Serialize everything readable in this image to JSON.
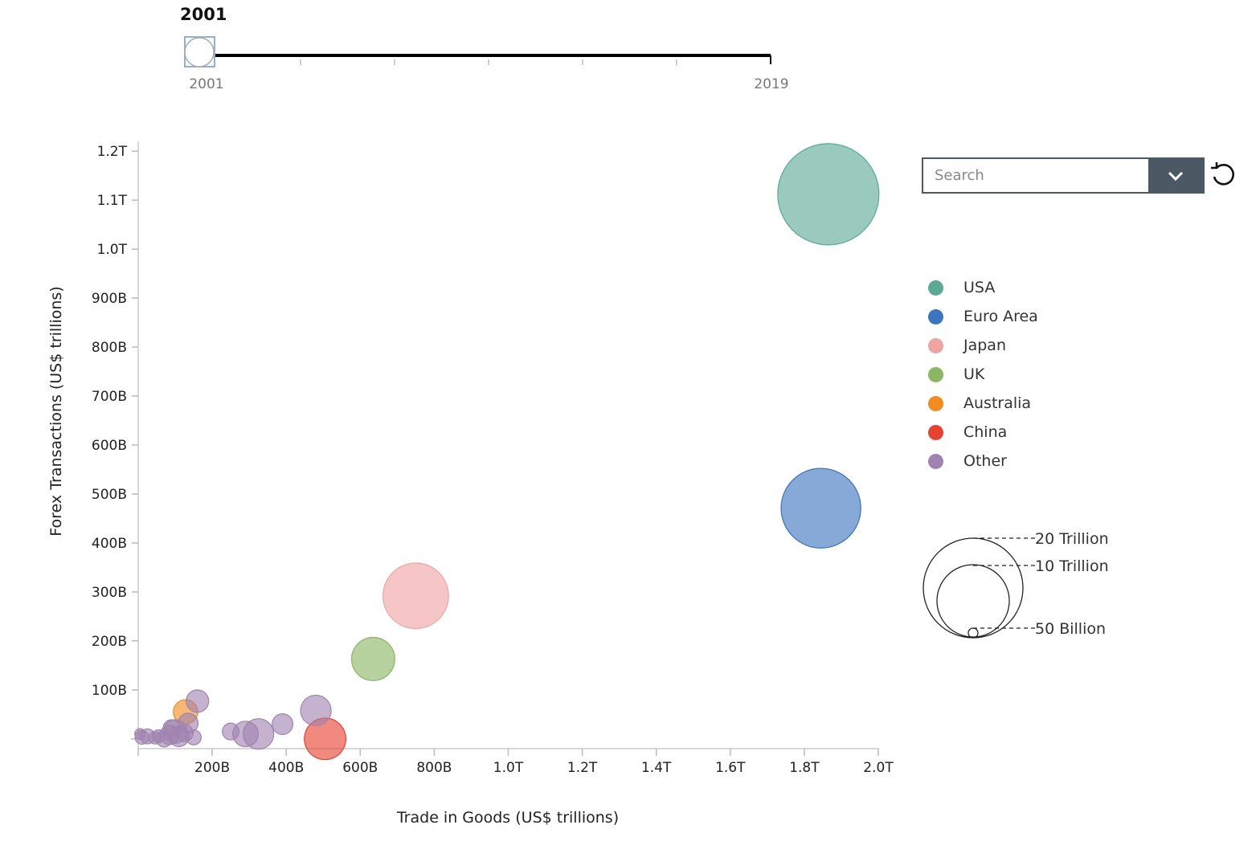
{
  "slider": {
    "current_year": "2001",
    "min_label": "2001",
    "max_label": "2019",
    "value": 2001,
    "min": 2001,
    "max": 2019
  },
  "search": {
    "placeholder": "Search"
  },
  "legend": {
    "items": [
      {
        "label": "USA",
        "color": "#5aaa95"
      },
      {
        "label": "Euro Area",
        "color": "#3b74bf"
      },
      {
        "label": "Japan",
        "color": "#f0a3a3"
      },
      {
        "label": "UK",
        "color": "#8bb662"
      },
      {
        "label": "Australia",
        "color": "#f28c1e"
      },
      {
        "label": "China",
        "color": "#e8412f"
      },
      {
        "label": "Other",
        "color": "#9f83b0"
      }
    ]
  },
  "size_legend": {
    "items": [
      {
        "label": "20 Trillion"
      },
      {
        "label": "10 Trillion"
      },
      {
        "label": "50 Billion"
      }
    ]
  },
  "chart_data": {
    "type": "scatter",
    "xlabel": "Trade in Goods (US$ trillions)",
    "ylabel": "Forex Transactions (US$ trillions)",
    "xlim": [
      0,
      2000
    ],
    "ylim": [
      -20,
      1220
    ],
    "x_ticks": [
      {
        "v": 200,
        "label": "200B"
      },
      {
        "v": 400,
        "label": "400B"
      },
      {
        "v": 600,
        "label": "600B"
      },
      {
        "v": 800,
        "label": "800B"
      },
      {
        "v": 1000,
        "label": "1.0T"
      },
      {
        "v": 1200,
        "label": "1.2T"
      },
      {
        "v": 1400,
        "label": "1.4T"
      },
      {
        "v": 1600,
        "label": "1.6T"
      },
      {
        "v": 1800,
        "label": "1.8T"
      },
      {
        "v": 2000,
        "label": "2.0T"
      }
    ],
    "y_ticks": [
      {
        "v": 100,
        "label": "100B"
      },
      {
        "v": 200,
        "label": "200B"
      },
      {
        "v": 300,
        "label": "300B"
      },
      {
        "v": 400,
        "label": "400B"
      },
      {
        "v": 500,
        "label": "500B"
      },
      {
        "v": 600,
        "label": "600B"
      },
      {
        "v": 700,
        "label": "700B"
      },
      {
        "v": 800,
        "label": "800B"
      },
      {
        "v": 900,
        "label": "900B"
      },
      {
        "v": 1000,
        "label": "1.0T"
      },
      {
        "v": 1100,
        "label": "1.1T"
      },
      {
        "v": 1200,
        "label": "1.2T"
      }
    ],
    "points": [
      {
        "group": "Other",
        "x": 5,
        "y": 10,
        "size": 0.6
      },
      {
        "group": "Other",
        "x": 10,
        "y": 3,
        "size": 1
      },
      {
        "group": "Other",
        "x": 25,
        "y": 5,
        "size": 1.2
      },
      {
        "group": "Other",
        "x": 45,
        "y": 2,
        "size": 0.8
      },
      {
        "group": "Other",
        "x": 55,
        "y": 5,
        "size": 0.9
      },
      {
        "group": "Other",
        "x": 70,
        "y": 0,
        "size": 1.4
      },
      {
        "group": "Other",
        "x": 85,
        "y": 8,
        "size": 2
      },
      {
        "group": "Other",
        "x": 90,
        "y": 22,
        "size": 1.5
      },
      {
        "group": "Other",
        "x": 100,
        "y": 15,
        "size": 3
      },
      {
        "group": "Other",
        "x": 110,
        "y": 5,
        "size": 2.2
      },
      {
        "group": "Other",
        "x": 125,
        "y": 12,
        "size": 1.6
      },
      {
        "group": "Other",
        "x": 135,
        "y": 32,
        "size": 2.1
      },
      {
        "group": "Other",
        "x": 150,
        "y": 3,
        "size": 1.2
      },
      {
        "group": "Other",
        "x": 160,
        "y": 77,
        "size": 2.7
      },
      {
        "group": "Other",
        "x": 250,
        "y": 15,
        "size": 1.5
      },
      {
        "group": "Other",
        "x": 290,
        "y": 10,
        "size": 3.5
      },
      {
        "group": "Other",
        "x": 325,
        "y": 10,
        "size": 5
      },
      {
        "group": "Other",
        "x": 390,
        "y": 30,
        "size": 2.3
      },
      {
        "group": "Other",
        "x": 480,
        "y": 58,
        "size": 5
      },
      {
        "group": "Australia",
        "x": 128,
        "y": 55,
        "size": 3.2
      },
      {
        "group": "China",
        "x": 505,
        "y": 0,
        "size": 9.2
      },
      {
        "group": "UK",
        "x": 635,
        "y": 163,
        "size": 10
      },
      {
        "group": "Japan",
        "x": 750,
        "y": 292,
        "size": 23
      },
      {
        "group": "Euro Area",
        "x": 1845,
        "y": 471,
        "size": 34
      },
      {
        "group": "USA",
        "x": 1865,
        "y": 1112,
        "size": 55
      }
    ]
  }
}
